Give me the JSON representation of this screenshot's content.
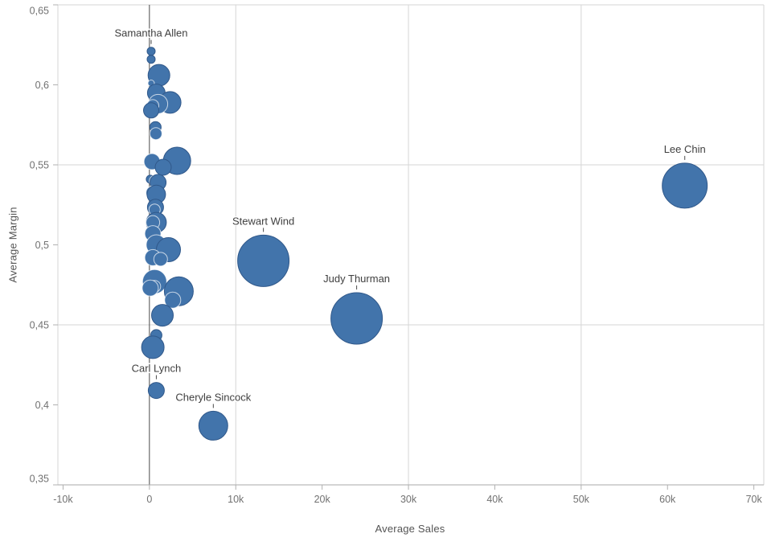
{
  "chart_data": {
    "type": "scatter",
    "title": "",
    "xlabel": "Average Sales",
    "ylabel": "Average Margin",
    "xlim": [
      -10600,
      71150
    ],
    "ylim": [
      0.35,
      0.65
    ],
    "x_ticks": [
      {
        "v": -10000,
        "label": "-10k"
      },
      {
        "v": 0,
        "label": "0"
      },
      {
        "v": 10000,
        "label": "10k"
      },
      {
        "v": 20000,
        "label": "20k"
      },
      {
        "v": 30000,
        "label": "30k"
      },
      {
        "v": 40000,
        "label": "40k"
      },
      {
        "v": 50000,
        "label": "50k"
      },
      {
        "v": 60000,
        "label": "60k"
      },
      {
        "v": 70000,
        "label": "70k"
      }
    ],
    "y_ticks": [
      {
        "v": 0.65,
        "label": "0,65"
      },
      {
        "v": 0.6,
        "label": "0,6"
      },
      {
        "v": 0.55,
        "label": "0,55"
      },
      {
        "v": 0.5,
        "label": "0,5"
      },
      {
        "v": 0.45,
        "label": "0,45"
      },
      {
        "v": 0.4,
        "label": "0,4"
      },
      {
        "v": 0.35,
        "label": "0,35"
      }
    ],
    "grid_x_values": [
      10000,
      30000,
      50000
    ],
    "grid_y_values": [
      0.55,
      0.45
    ],
    "zero_line_x": 0,
    "legend": "none",
    "points": [
      {
        "name": "Samantha Allen",
        "x": 200,
        "y": 0.621,
        "r": 5,
        "ring": false
      },
      {
        "name": "",
        "x": 200,
        "y": 0.616,
        "r": 5,
        "ring": false
      },
      {
        "name": "",
        "x": 1100,
        "y": 0.606,
        "r": 13.5,
        "ring": false
      },
      {
        "name": "",
        "x": 200,
        "y": 0.601,
        "r": 4,
        "ring": true
      },
      {
        "name": "",
        "x": 800,
        "y": 0.595,
        "r": 11,
        "ring": false
      },
      {
        "name": "",
        "x": 2400,
        "y": 0.589,
        "r": 13.5,
        "ring": false
      },
      {
        "name": "",
        "x": 1000,
        "y": 0.588,
        "r": 12,
        "ring": true
      },
      {
        "name": "",
        "x": 400,
        "y": 0.587,
        "r": 7.5,
        "ring": true
      },
      {
        "name": "",
        "x": 200,
        "y": 0.584,
        "r": 9.5,
        "ring": false
      },
      {
        "name": "",
        "x": 700,
        "y": 0.5735,
        "r": 7,
        "ring": false
      },
      {
        "name": "",
        "x": 750,
        "y": 0.5695,
        "r": 7.5,
        "ring": true
      },
      {
        "name": "",
        "x": 300,
        "y": 0.552,
        "r": 10,
        "ring": true
      },
      {
        "name": "",
        "x": 3200,
        "y": 0.5525,
        "r": 17,
        "ring": false
      },
      {
        "name": "",
        "x": 1600,
        "y": 0.5485,
        "r": 10,
        "ring": false
      },
      {
        "name": "",
        "x": 100,
        "y": 0.541,
        "r": 5,
        "ring": false
      },
      {
        "name": "",
        "x": 600,
        "y": 0.54,
        "r": 6.5,
        "ring": true
      },
      {
        "name": "",
        "x": 1000,
        "y": 0.539,
        "r": 10,
        "ring": false
      },
      {
        "name": "",
        "x": 400,
        "y": 0.5325,
        "r": 8.5,
        "ring": true
      },
      {
        "name": "",
        "x": 800,
        "y": 0.5315,
        "r": 11.5,
        "ring": false
      },
      {
        "name": "",
        "x": 700,
        "y": 0.5235,
        "r": 10,
        "ring": false
      },
      {
        "name": "",
        "x": 600,
        "y": 0.522,
        "r": 7,
        "ring": true
      },
      {
        "name": "",
        "x": 800,
        "y": 0.514,
        "r": 12.5,
        "ring": false
      },
      {
        "name": "",
        "x": 400,
        "y": 0.514,
        "r": 8.5,
        "ring": true
      },
      {
        "name": "",
        "x": 400,
        "y": 0.507,
        "r": 10,
        "ring": true
      },
      {
        "name": "",
        "x": 800,
        "y": 0.5,
        "r": 12.5,
        "ring": true
      },
      {
        "name": "",
        "x": 2200,
        "y": 0.497,
        "r": 15,
        "ring": false
      },
      {
        "name": "",
        "x": 400,
        "y": 0.492,
        "r": 10,
        "ring": true
      },
      {
        "name": "",
        "x": 1300,
        "y": 0.491,
        "r": 8.5,
        "ring": true
      },
      {
        "name": "Stewart Wind",
        "x": 13200,
        "y": 0.49,
        "r": 32,
        "ring": false
      },
      {
        "name": "",
        "x": 600,
        "y": 0.477,
        "r": 15,
        "ring": true
      },
      {
        "name": "",
        "x": 600,
        "y": 0.474,
        "r": 7.5,
        "ring": true
      },
      {
        "name": "",
        "x": 100,
        "y": 0.473,
        "r": 10,
        "ring": true
      },
      {
        "name": "",
        "x": 3400,
        "y": 0.471,
        "r": 18,
        "ring": false
      },
      {
        "name": "",
        "x": 2700,
        "y": 0.4655,
        "r": 10,
        "ring": true
      },
      {
        "name": "",
        "x": 1500,
        "y": 0.456,
        "r": 13.5,
        "ring": false
      },
      {
        "name": "Judy Thurman",
        "x": 24000,
        "y": 0.454,
        "r": 32,
        "ring": false
      },
      {
        "name": "",
        "x": 800,
        "y": 0.4435,
        "r": 7,
        "ring": false
      },
      {
        "name": "",
        "x": 400,
        "y": 0.436,
        "r": 14,
        "ring": false
      },
      {
        "name": "Lee Chin",
        "x": 62000,
        "y": 0.537,
        "r": 28,
        "ring": false
      },
      {
        "name": "Carl Lynch",
        "x": 800,
        "y": 0.409,
        "r": 10,
        "ring": false
      },
      {
        "name": "Cheryle Sincock",
        "x": 7400,
        "y": 0.387,
        "r": 18,
        "ring": false
      }
    ]
  },
  "colors": {
    "bubble_fill": "#4274ab",
    "bubble_stroke": "#30588a",
    "ring_stroke": "rgba(255,255,255,0.7)",
    "grid_line": "#d6d6d6",
    "plot_border": "#d6d6d6",
    "axis_line": "#a9a9a9",
    "zero_line": "#4a4a4a",
    "tick_mark": "#b0b0b0",
    "tick_text": "#717171",
    "point_label_text": "#404040",
    "leader_line": "#4a4a4a"
  }
}
